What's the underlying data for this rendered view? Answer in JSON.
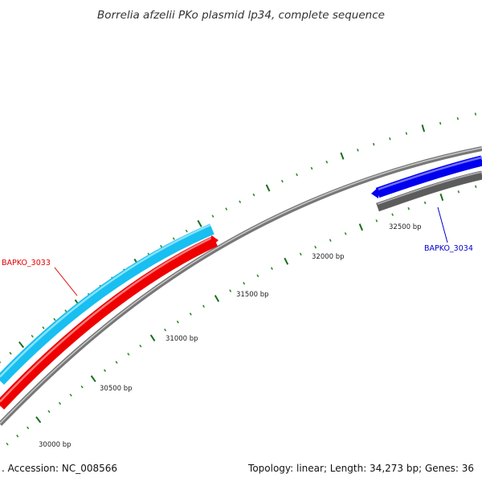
{
  "title": "Borrelia afzelii PKo plasmid lp34, complete sequence",
  "footer": {
    "accession": ". Accession: NC_008566",
    "summary": "Topology: linear; Length: 34,273 bp; Genes: 36"
  },
  "scale": {
    "ticks": [
      {
        "label": "30000 bp"
      },
      {
        "label": "30500 bp"
      },
      {
        "label": "31000 bp"
      },
      {
        "label": "31500 bp"
      },
      {
        "label": "32000 bp"
      },
      {
        "label": "32500 bp"
      }
    ]
  },
  "genes": [
    {
      "name": "BAPKO_3033",
      "color": "#e00000"
    },
    {
      "name": "BAPKO_3034",
      "color": "#0000cc"
    }
  ],
  "colors": {
    "backbone": "#888888",
    "forward_gene": "#22c5f0",
    "reverse_gene": "#ff0000",
    "forward_gene_2": "#0000ee",
    "grey_gene": "#666666",
    "major_tick": "#1a6e1a",
    "minor_tick": "#2e8b2e"
  }
}
